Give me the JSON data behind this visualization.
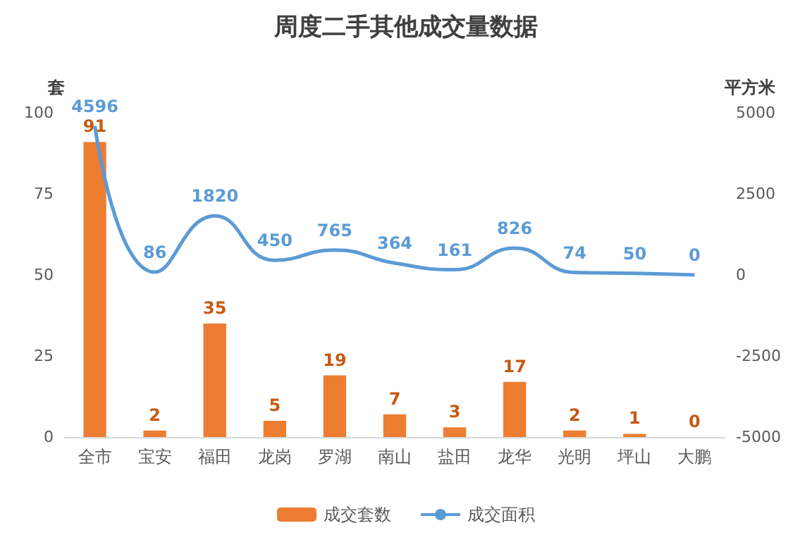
{
  "chart_data": {
    "type": "bar",
    "title": "周度二手其他成交量数据",
    "ylabel": "套",
    "y2label": "平方米",
    "categories": [
      "全市",
      "宝安",
      "福田",
      "龙岗",
      "罗湖",
      "南山",
      "盐田",
      "龙华",
      "光明",
      "坪山",
      "大鹏"
    ],
    "series": [
      {
        "name": "成交套数",
        "color": "#ed7d31",
        "values": [
          91,
          2,
          35,
          5,
          19,
          7,
          3,
          17,
          2,
          1,
          0
        ]
      },
      {
        "name": "成交面积",
        "type": "line",
        "axis": "y2",
        "color": "#5b9bd5",
        "marker": "none",
        "line_style": "solid",
        "values": [
          4596,
          86,
          1820,
          450,
          765,
          364,
          161,
          826,
          74,
          50,
          0
        ]
      }
    ],
    "ylim": [
      0,
      100
    ],
    "yticks": [
      0,
      25,
      50,
      75,
      100
    ],
    "y2lim": [
      -5000,
      5000
    ],
    "y2ticks": [
      -5000,
      -2500,
      0,
      2500,
      5000
    ],
    "data_labels": true,
    "grid": false,
    "legend": "bottom"
  }
}
